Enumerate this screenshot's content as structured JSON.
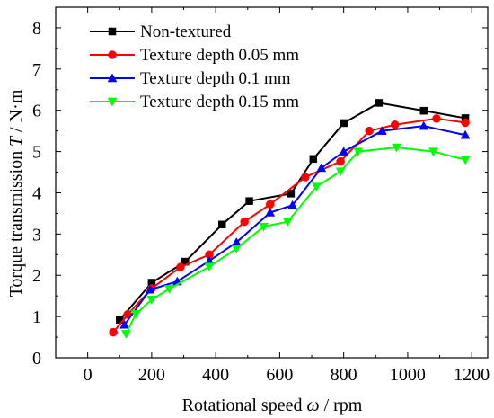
{
  "chart_data": {
    "type": "line",
    "xlabel_prefix": "Rotational speed ",
    "xlabel_symbol": "ω",
    "xlabel_suffix": " / rpm",
    "ylabel_prefix": "Torque transmission ",
    "ylabel_symbol": "T",
    "ylabel_suffix": " / N·m",
    "xlim": [
      -100,
      1250
    ],
    "ylim": [
      0,
      8.5
    ],
    "xticks": [
      0,
      200,
      400,
      600,
      800,
      1000,
      1200
    ],
    "yticks": [
      0,
      1,
      2,
      3,
      4,
      5,
      6,
      7,
      8
    ],
    "legend_position": "top-left",
    "grid": false,
    "series": [
      {
        "name": "Non-textured",
        "color": "#000000",
        "marker": "square",
        "x": [
          100,
          200,
          305,
          420,
          505,
          635,
          705,
          800,
          910,
          1050,
          1180
        ],
        "y": [
          0.92,
          1.82,
          2.33,
          3.23,
          3.8,
          3.98,
          4.82,
          5.69,
          6.18,
          5.99,
          5.81
        ]
      },
      {
        "name": "Texture depth 0.05 mm",
        "color": "#ff0000",
        "marker": "circle",
        "x": [
          80,
          125,
          200,
          290,
          380,
          490,
          570,
          680,
          790,
          880,
          960,
          1090,
          1180
        ],
        "y": [
          0.62,
          1.05,
          1.68,
          2.2,
          2.5,
          3.3,
          3.72,
          4.38,
          4.76,
          5.5,
          5.65,
          5.8,
          5.7
        ]
      },
      {
        "name": "Texture depth 0.1 mm",
        "color": "#0000ff",
        "marker": "triangle-up",
        "x": [
          115,
          195,
          280,
          380,
          465,
          570,
          640,
          730,
          800,
          920,
          1050,
          1180
        ],
        "y": [
          0.8,
          1.65,
          1.85,
          2.35,
          2.8,
          3.52,
          3.7,
          4.6,
          5.0,
          5.5,
          5.62,
          5.4
        ]
      },
      {
        "name": "Texture depth 0.15 mm",
        "color": "#00ff00",
        "marker": "triangle-down",
        "x": [
          120,
          150,
          200,
          255,
          380,
          465,
          550,
          625,
          715,
          790,
          845,
          965,
          1080,
          1180
        ],
        "y": [
          0.58,
          1.06,
          1.41,
          1.67,
          2.21,
          2.65,
          3.18,
          3.3,
          4.15,
          4.52,
          5.0,
          5.1,
          5.0,
          4.8
        ]
      }
    ]
  }
}
